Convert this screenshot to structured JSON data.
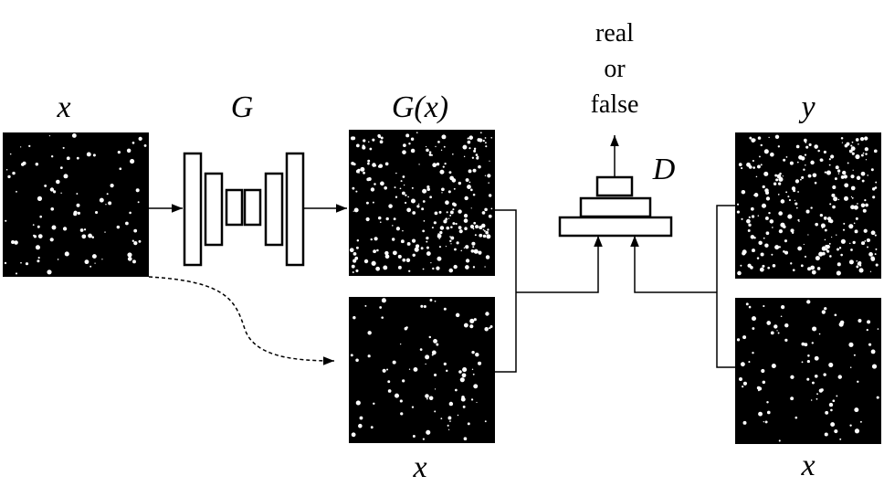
{
  "nodes": [
    {
      "label": "x"
    },
    {
      "label": "G"
    },
    {
      "label": "G(x)"
    },
    {
      "label": "x"
    },
    {
      "label": "D"
    },
    {
      "label": "y"
    },
    {
      "label": "x"
    }
  ],
  "output": {
    "lines": [
      "real",
      "or",
      "false"
    ]
  }
}
